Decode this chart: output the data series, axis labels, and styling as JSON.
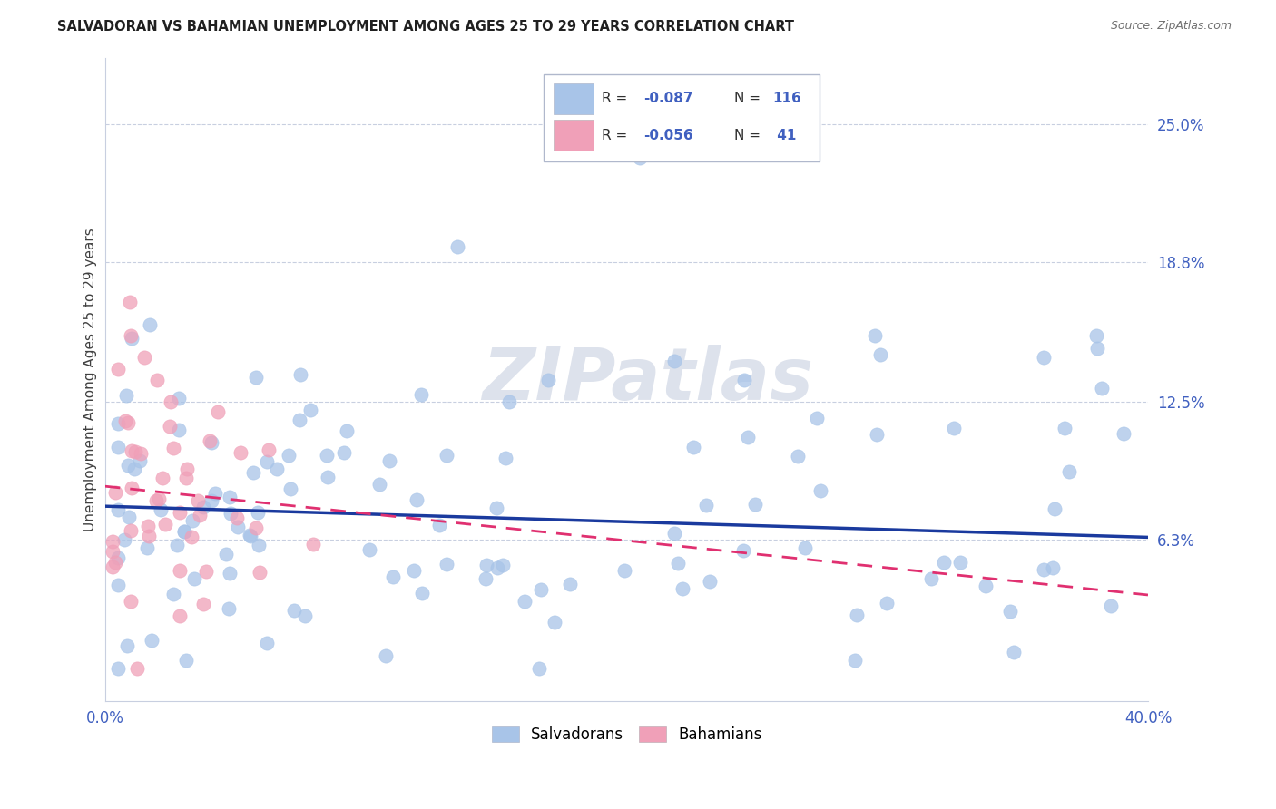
{
  "title": "SALVADORAN VS BAHAMIAN UNEMPLOYMENT AMONG AGES 25 TO 29 YEARS CORRELATION CHART",
  "source": "Source: ZipAtlas.com",
  "ylabel": "Unemployment Among Ages 25 to 29 years",
  "xlim": [
    0.0,
    0.4
  ],
  "ylim": [
    -0.01,
    0.28
  ],
  "y_tick_vals_right": [
    0.25,
    0.188,
    0.125,
    0.063
  ],
  "y_tick_labels_right": [
    "25.0%",
    "18.8%",
    "12.5%",
    "6.3%"
  ],
  "watermark": "ZIPatlas",
  "salvadoran_color": "#a8c4e8",
  "bahamian_color": "#f0a0b8",
  "trend_salvadoran_color": "#1a3a9e",
  "trend_bahamian_color": "#e03070",
  "sal_trend_x0": 0.0,
  "sal_trend_y0": 0.078,
  "sal_trend_x1": 0.4,
  "sal_trend_y1": 0.064,
  "bah_trend_x0": 0.0,
  "bah_trend_y0": 0.087,
  "bah_trend_x1": 0.4,
  "bah_trend_y1": 0.038,
  "grid_color": "#c8cfe0",
  "spine_color": "#c8cfe0",
  "tick_color": "#4060c0",
  "title_color": "#202020",
  "source_color": "#707070",
  "ylabel_color": "#404040",
  "watermark_color": "#dde2ec"
}
